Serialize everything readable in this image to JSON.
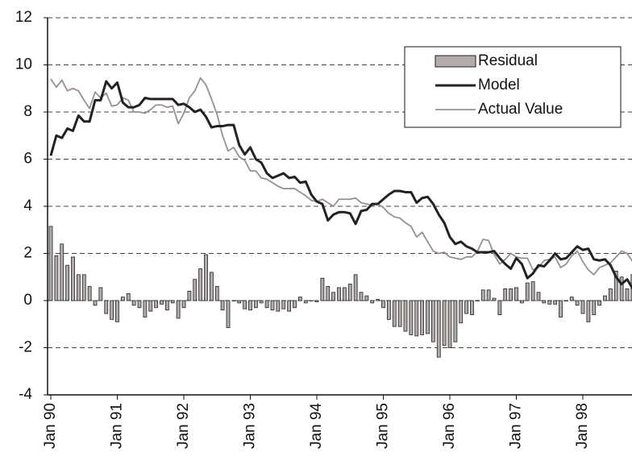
{
  "chart_data": {
    "type": "combo",
    "categories": [
      "Jan 90",
      null,
      null,
      null,
      null,
      null,
      null,
      null,
      null,
      null,
      null,
      null,
      "Jan 91",
      null,
      null,
      null,
      null,
      null,
      null,
      null,
      null,
      null,
      null,
      null,
      "Jan 92",
      null,
      null,
      null,
      null,
      null,
      null,
      null,
      null,
      null,
      null,
      null,
      "Jan 93",
      null,
      null,
      null,
      null,
      null,
      null,
      null,
      null,
      null,
      null,
      null,
      "Jan 94",
      null,
      null,
      null,
      null,
      null,
      null,
      null,
      null,
      null,
      null,
      null,
      "Jan 95",
      null,
      null,
      null,
      null,
      null,
      null,
      null,
      null,
      null,
      null,
      null,
      "Jan 96",
      null,
      null,
      null,
      null,
      null,
      null,
      null,
      null,
      null,
      null,
      null,
      "Jan 97",
      null,
      null,
      null,
      null,
      null,
      null,
      null,
      null,
      null,
      null,
      null,
      "Jan 98",
      null,
      null,
      null,
      null,
      null,
      null,
      null,
      null,
      null
    ],
    "series": [
      {
        "name": "Residual",
        "type": "bar",
        "color": "#b3aaaa",
        "values": [
          3.15,
          1.9,
          2.4,
          1.5,
          1.85,
          1.1,
          1.1,
          0.6,
          -0.2,
          0.55,
          -0.55,
          -0.8,
          -0.9,
          0.15,
          0.3,
          -0.2,
          -0.3,
          -0.7,
          -0.45,
          -0.3,
          -0.15,
          -0.4,
          -0.1,
          -0.75,
          -0.3,
          0.4,
          0.9,
          1.35,
          1.95,
          1.2,
          0.6,
          -0.4,
          -1.15,
          0,
          -0.1,
          -0.35,
          -0.4,
          -0.3,
          -0.1,
          -0.3,
          -0.4,
          -0.45,
          -0.35,
          -0.45,
          -0.3,
          0.15,
          -0.1,
          0,
          -0.05,
          0.95,
          0.6,
          0.35,
          0.55,
          0.55,
          0.7,
          1.1,
          0.35,
          0.2,
          -0.1,
          0.05,
          -0.3,
          -0.8,
          -1.1,
          -1.1,
          -1.3,
          -1.45,
          -1.5,
          -1.45,
          -1.4,
          -1.75,
          -2.4,
          -1.9,
          -2.0,
          -1.75,
          -0.95,
          -0.55,
          -0.6,
          0,
          0.45,
          0.45,
          0.1,
          -0.6,
          0.5,
          0.5,
          0.55,
          -0.1,
          0.75,
          0.8,
          0.35,
          -0.1,
          -0.15,
          -0.15,
          -0.7,
          0,
          0.15,
          -0.2,
          -0.55,
          -0.9,
          -0.6,
          -0.2,
          0.2,
          0.5,
          1.25,
          1.0,
          0.5,
          1.1
        ]
      },
      {
        "name": "Model",
        "type": "line",
        "color": "#222222",
        "values": [
          6.15,
          7.0,
          6.9,
          7.3,
          7.2,
          7.85,
          7.6,
          7.6,
          8.5,
          8.5,
          9.3,
          9.0,
          9.25,
          8.4,
          8.2,
          8.2,
          8.3,
          8.6,
          8.55,
          8.55,
          8.55,
          8.55,
          8.55,
          8.3,
          8.35,
          8.2,
          8.0,
          8.1,
          7.8,
          7.35,
          7.4,
          7.4,
          7.45,
          7.45,
          6.6,
          6.2,
          6.5,
          6.0,
          5.85,
          5.4,
          5.2,
          5.3,
          5.4,
          5.2,
          5.25,
          5.0,
          5.05,
          4.5,
          4.2,
          4.1,
          3.4,
          3.65,
          3.75,
          3.75,
          3.7,
          3.25,
          3.8,
          3.85,
          4.1,
          4.1,
          4.3,
          4.5,
          4.65,
          4.65,
          4.6,
          4.6,
          4.15,
          4.35,
          4.4,
          4.1,
          3.65,
          3.3,
          2.7,
          2.4,
          2.5,
          2.3,
          2.2,
          2.05,
          2.05,
          2.05,
          2.1,
          1.8,
          1.55,
          1.35,
          1.8,
          1.55,
          0.95,
          1.15,
          1.5,
          1.45,
          1.7,
          2.0,
          1.75,
          1.8,
          2.05,
          2.3,
          2.15,
          2.2,
          1.75,
          1.7,
          1.75,
          1.5,
          1.0,
          0.7,
          0.9,
          0.5
        ]
      },
      {
        "name": "Actual Value",
        "type": "line",
        "color": "#9a8f8f",
        "values": [
          9.4,
          9.05,
          9.35,
          8.9,
          9.0,
          8.9,
          8.5,
          8.15,
          8.85,
          8.6,
          8.8,
          8.25,
          8.3,
          8.6,
          8.5,
          8.0,
          8.0,
          7.95,
          8.1,
          8.3,
          8.3,
          8.2,
          8.25,
          7.5,
          7.95,
          8.6,
          8.9,
          9.45,
          9.15,
          8.55,
          7.9,
          7.0,
          6.35,
          6.5,
          6.1,
          5.95,
          5.5,
          5.5,
          5.2,
          5.15,
          5.0,
          4.85,
          4.75,
          4.75,
          4.75,
          4.6,
          4.45,
          4.25,
          4.2,
          4.3,
          4.15,
          4.0,
          4.3,
          4.3,
          4.3,
          4.35,
          4.15,
          4.1,
          4.05,
          4.1,
          3.95,
          3.7,
          3.55,
          3.5,
          3.3,
          3.15,
          2.7,
          2.9,
          2.5,
          2.1,
          2.0,
          2.05,
          1.85,
          1.8,
          1.75,
          1.85,
          1.85,
          2.1,
          2.6,
          2.55,
          1.95,
          1.55,
          1.75,
          2.0,
          1.85,
          1.8,
          1.8,
          1.3,
          1.4,
          1.7,
          1.75,
          1.85,
          1.4,
          1.55,
          1.9,
          2.1,
          1.65,
          1.3,
          1.1,
          1.4,
          1.5,
          1.6,
          1.85,
          2.1,
          2.0,
          1.65
        ]
      }
    ],
    "ylim": [
      -4,
      12
    ],
    "yticks": [
      -4,
      -2,
      0,
      2,
      4,
      6,
      8,
      10,
      12
    ],
    "grid": true,
    "legend": "upper right"
  }
}
